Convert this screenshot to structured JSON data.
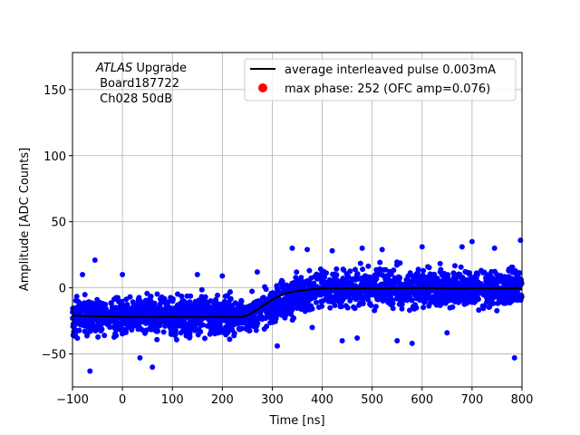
{
  "chart_data": {
    "type": "scatter",
    "title": "",
    "xlabel": "Time [ns]",
    "ylabel": "Amplitude [ADC Counts]",
    "xlim": [
      -100,
      800
    ],
    "ylim": [
      -75,
      178
    ],
    "xticks": [
      -100,
      0,
      100,
      200,
      300,
      400,
      500,
      600,
      700,
      800
    ],
    "xtick_labels": [
      "−100",
      "0",
      "100",
      "200",
      "300",
      "400",
      "500",
      "600",
      "700",
      "800"
    ],
    "yticks": [
      -50,
      0,
      50,
      100,
      150
    ],
    "ytick_labels": [
      "−50",
      "0",
      "50",
      "100",
      "150"
    ],
    "grid": true,
    "legend_position": "upper right",
    "annotation": {
      "italic_part": "ATLAS",
      "line1_rest": " Upgrade",
      "line2": " Board187722",
      "line3": " Ch028 50dB"
    },
    "series": [
      {
        "name": "average interleaved pulse 0.003mA",
        "kind": "line",
        "color": "#000000",
        "x": [
          -100,
          0,
          100,
          200,
          240,
          250,
          260,
          280,
          300,
          320,
          340,
          360,
          380,
          400,
          450,
          500,
          550,
          600,
          650,
          700,
          750,
          800
        ],
        "y": [
          -21,
          -22,
          -22,
          -22,
          -22,
          -21,
          -19,
          -14,
          -9,
          -5,
          -3,
          -2,
          -1,
          -0.5,
          -0.5,
          -0.5,
          -0.5,
          0,
          -0.5,
          -0.5,
          -0.5,
          -0.5
        ]
      },
      {
        "name": "max phase: 252 (OFC amp=0.076)",
        "kind": "point",
        "color": "#ff0000",
        "x": [
          252
        ],
        "y": [
          -22
        ]
      },
      {
        "name": "samples",
        "kind": "scatter-band",
        "color": "#0000ff",
        "baseline_x": [
          -100,
          250,
          400,
          800
        ],
        "baseline_y": [
          -22,
          -21,
          0,
          0
        ],
        "noise_half_width": 18,
        "outliers": [
          {
            "x": -65,
            "y": -63
          },
          {
            "x": -55,
            "y": 21
          },
          {
            "x": -80,
            "y": 10
          },
          {
            "x": 60,
            "y": -60
          },
          {
            "x": 35,
            "y": -53
          },
          {
            "x": 0,
            "y": 10
          },
          {
            "x": 150,
            "y": 10
          },
          {
            "x": 200,
            "y": 9
          },
          {
            "x": 270,
            "y": 12
          },
          {
            "x": 340,
            "y": 30
          },
          {
            "x": 370,
            "y": 29
          },
          {
            "x": 420,
            "y": 28
          },
          {
            "x": 480,
            "y": 30
          },
          {
            "x": 520,
            "y": 29
          },
          {
            "x": 600,
            "y": 31
          },
          {
            "x": 680,
            "y": 31
          },
          {
            "x": 700,
            "y": 35
          },
          {
            "x": 745,
            "y": 30
          },
          {
            "x": 797,
            "y": 36
          },
          {
            "x": 785,
            "y": -53
          },
          {
            "x": 470,
            "y": -38
          },
          {
            "x": 550,
            "y": -40
          },
          {
            "x": 580,
            "y": -42
          },
          {
            "x": 650,
            "y": -34
          },
          {
            "x": 310,
            "y": -44
          },
          {
            "x": 380,
            "y": -30
          },
          {
            "x": 440,
            "y": -40
          }
        ]
      }
    ]
  }
}
